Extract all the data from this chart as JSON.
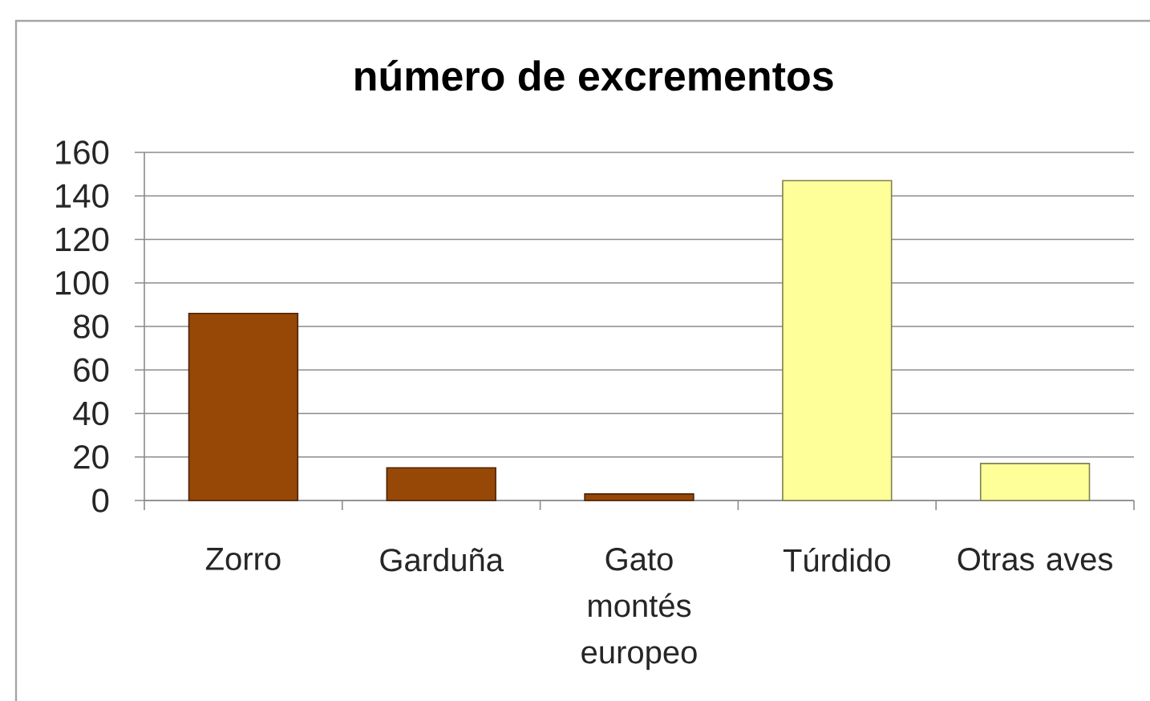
{
  "chart_data": {
    "type": "bar",
    "title": "número de excrementos",
    "categories": [
      "Zorro",
      "Garduña",
      "Gato montés europeo",
      "Túrdido",
      "Otras aves"
    ],
    "values": [
      86,
      15,
      3,
      147,
      17
    ],
    "colors": [
      "#974706",
      "#974706",
      "#974706",
      "#ffff99",
      "#ffff99"
    ],
    "ylim": [
      0,
      160
    ],
    "yticks": [
      0,
      20,
      40,
      60,
      80,
      100,
      120,
      140,
      160
    ],
    "grid": "y"
  }
}
